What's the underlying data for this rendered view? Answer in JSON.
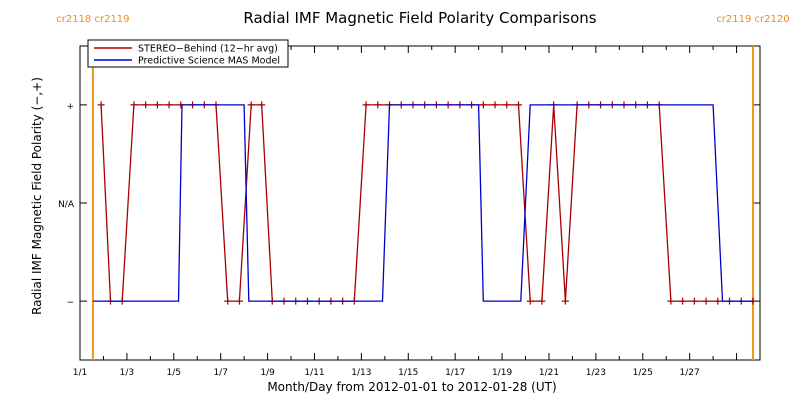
{
  "chart_data": {
    "type": "line",
    "title": "Radial IMF Magnetic Field Polarity Comparisons",
    "xlabel": "Month/Day from 2012-01-01 to 2012-01-28 (UT)",
    "ylabel": "Radial IMF Magnetic Field Polarity (−,+)",
    "xlim": [
      0,
      29
    ],
    "ylim": [
      -1.6,
      1.6
    ],
    "x_ticks": [
      {
        "value": 0,
        "label": "1/1"
      },
      {
        "value": 2,
        "label": "1/3"
      },
      {
        "value": 4,
        "label": "1/5"
      },
      {
        "value": 6,
        "label": "1/7"
      },
      {
        "value": 8,
        "label": "1/9"
      },
      {
        "value": 10,
        "label": "1/11"
      },
      {
        "value": 12,
        "label": "1/13"
      },
      {
        "value": 14,
        "label": "1/15"
      },
      {
        "value": 16,
        "label": "1/17"
      },
      {
        "value": 18,
        "label": "1/19"
      },
      {
        "value": 20,
        "label": "1/21"
      },
      {
        "value": 22,
        "label": "1/23"
      },
      {
        "value": 24,
        "label": "1/25"
      },
      {
        "value": 26,
        "label": "1/27"
      }
    ],
    "y_ticks": [
      {
        "value": 1,
        "label": "+"
      },
      {
        "value": 0,
        "label": "N/A"
      },
      {
        "value": -1,
        "label": "−"
      }
    ],
    "legend_position": "top-left",
    "carrington_markers": [
      {
        "x": 0.55,
        "labels": [
          "cr2118",
          "cr2119"
        ],
        "side": "left"
      },
      {
        "x": 28.7,
        "labels": [
          "cr2119",
          "cr2120"
        ],
        "side": "right"
      }
    ],
    "marker_color": "#f0961e",
    "series": [
      {
        "name": "STEREO−Behind (12−hr avg)",
        "color": "#a80000",
        "marker": "plus",
        "x": [
          0.9,
          1.3,
          1.8,
          2.3,
          2.8,
          3.3,
          3.8,
          4.3,
          4.8,
          5.3,
          5.8,
          6.3,
          6.8,
          7.3,
          7.75,
          8.2,
          8.7,
          9.2,
          9.7,
          10.2,
          10.7,
          11.2,
          11.7,
          12.2,
          12.7,
          13.2,
          13.7,
          14.2,
          14.7,
          15.2,
          15.7,
          16.2,
          16.7,
          17.2,
          17.7,
          18.2,
          18.7,
          19.2,
          19.7,
          20.2,
          20.7,
          21.2,
          21.7,
          22.2,
          22.7,
          23.2,
          23.7,
          24.2,
          24.7,
          25.2,
          25.7,
          26.2,
          26.7,
          27.2,
          27.7,
          28.2,
          28.7
        ],
        "y": [
          1,
          -1,
          -1,
          1,
          1,
          1,
          1,
          1,
          1,
          1,
          1,
          -1,
          -1,
          1,
          1,
          -1,
          -1,
          -1,
          -1,
          -1,
          -1,
          -1,
          -1,
          1,
          1,
          1,
          1,
          1,
          1,
          1,
          1,
          1,
          1,
          1,
          1,
          1,
          1,
          -1,
          -1,
          1,
          -1,
          1,
          1,
          1,
          1,
          1,
          1,
          1,
          1,
          -1,
          -1,
          -1,
          -1,
          -1,
          -1,
          -1,
          -1
        ]
      },
      {
        "name": "Predictive Science MAS Model",
        "color": "#0000c8",
        "marker": "none",
        "x": [
          0.55,
          4.2,
          4.35,
          7.0,
          7.2,
          12.9,
          13.2,
          17.0,
          17.2,
          18.8,
          19.2,
          27.0,
          27.4,
          28.7
        ],
        "y": [
          -1,
          -1,
          1,
          1,
          -1,
          -1,
          1,
          1,
          -1,
          -1,
          1,
          1,
          -1,
          -1
        ]
      }
    ]
  }
}
